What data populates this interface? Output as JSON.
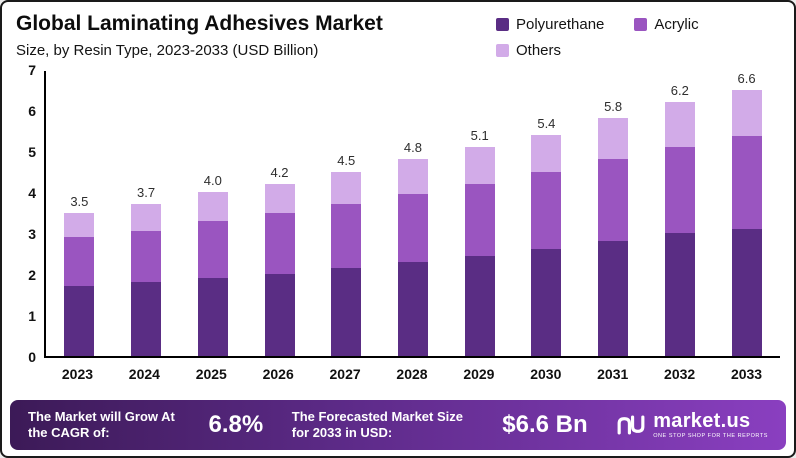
{
  "header": {
    "title": "Global Laminating Adhesives Market",
    "subtitle": "Size, by Resin Type, 2023-2033 (USD Billion)"
  },
  "chart_data": {
    "type": "bar",
    "stacked": true,
    "title": "Global Laminating Adhesives Market Size, by Resin Type, 2023-2033 (USD Billion)",
    "categories": [
      "2023",
      "2024",
      "2025",
      "2026",
      "2027",
      "2028",
      "2029",
      "2030",
      "2031",
      "2032",
      "2033"
    ],
    "series": [
      {
        "name": "Polyurethane",
        "color": "#5a2d84",
        "values": [
          1.7,
          1.8,
          1.9,
          2.0,
          2.15,
          2.3,
          2.45,
          2.6,
          2.8,
          3.0,
          3.15
        ]
      },
      {
        "name": "Acrylic",
        "color": "#9a55c0",
        "values": [
          1.2,
          1.25,
          1.4,
          1.5,
          1.55,
          1.65,
          1.75,
          1.9,
          2.0,
          2.1,
          2.3
        ]
      },
      {
        "name": "Others",
        "color": "#d2abe8",
        "values": [
          0.6,
          0.65,
          0.7,
          0.7,
          0.8,
          0.85,
          0.9,
          0.9,
          1.0,
          1.1,
          1.15
        ]
      }
    ],
    "totals": [
      "3.5",
      "3.7",
      "4.0",
      "4.2",
      "4.5",
      "4.8",
      "5.1",
      "5.4",
      "5.8",
      "6.2",
      "6.6"
    ],
    "xlabel": "",
    "ylabel": "",
    "ylim": [
      0,
      7
    ],
    "yticks": [
      0,
      1,
      2,
      3,
      4,
      5,
      6,
      7
    ],
    "grid": false,
    "legend_position": "top-right"
  },
  "footer": {
    "cagr_label": "The Market will Grow At the CAGR of:",
    "cagr_value": "6.8%",
    "forecast_label": "The Forecasted Market Size for 2033 in USD:",
    "forecast_value": "$6.6 Bn",
    "brand": "market.us",
    "brand_tagline": "One Stop Shop For The Reports"
  }
}
